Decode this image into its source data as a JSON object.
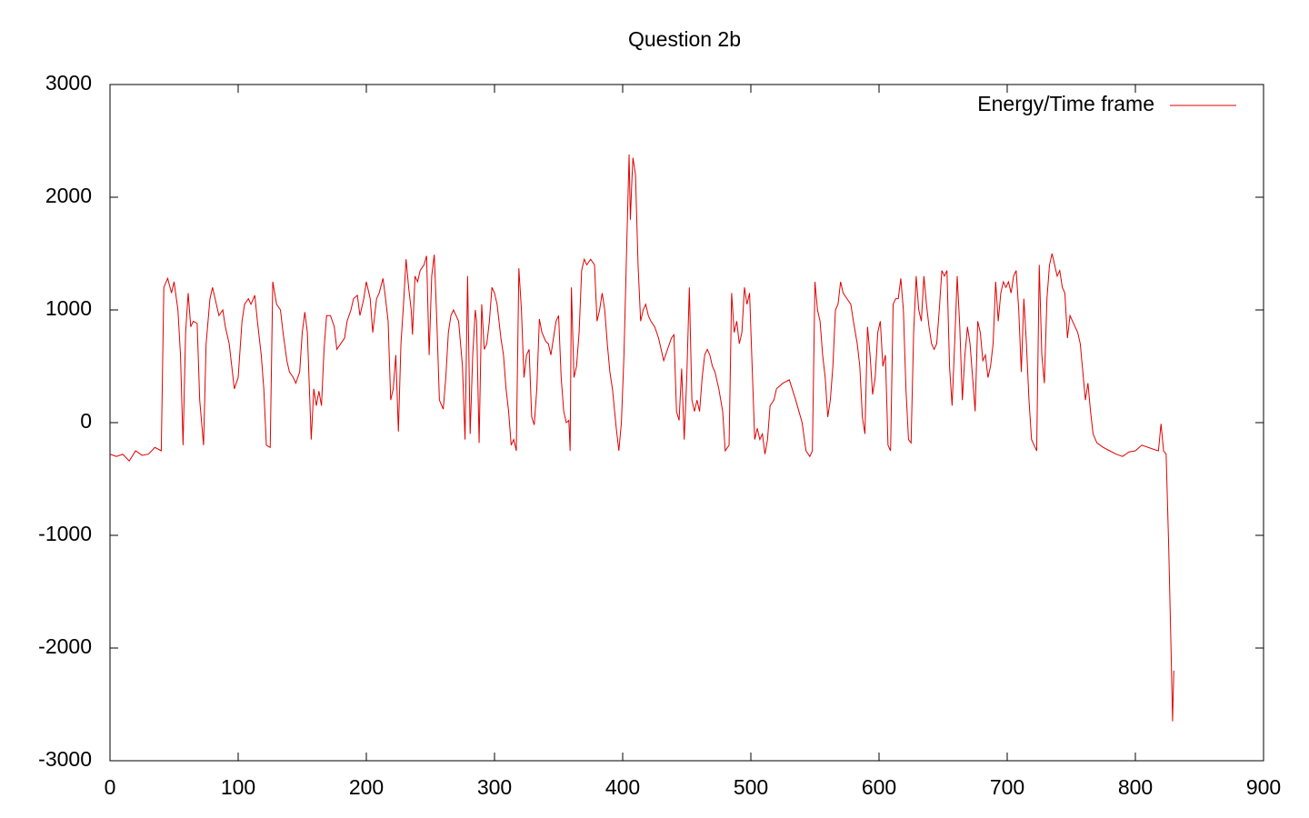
{
  "chart_data": {
    "type": "line",
    "title": "Question 2b",
    "x": [
      0,
      5,
      10,
      15,
      20,
      25,
      30,
      35,
      40,
      42,
      45,
      48,
      50,
      53,
      55,
      57,
      59,
      61,
      63,
      65,
      68,
      70,
      73,
      75,
      78,
      80,
      83,
      85,
      88,
      90,
      93,
      95,
      97,
      100,
      103,
      105,
      108,
      110,
      113,
      115,
      118,
      120,
      122,
      125,
      127,
      130,
      133,
      135,
      138,
      140,
      143,
      145,
      148,
      150,
      152,
      154,
      157,
      159,
      161,
      163,
      165,
      167,
      169,
      172,
      175,
      177,
      180,
      183,
      185,
      188,
      190,
      193,
      195,
      198,
      200,
      203,
      205,
      208,
      210,
      213,
      215,
      217,
      219,
      221,
      223,
      225,
      227,
      229,
      231,
      233,
      235,
      236,
      238,
      240,
      242,
      245,
      247,
      249,
      251,
      253,
      255,
      257,
      260,
      262,
      264,
      266,
      268,
      270,
      272,
      275,
      277,
      279,
      281,
      283,
      285,
      286,
      288,
      290,
      292,
      294,
      296,
      298,
      300,
      302,
      305,
      307,
      309,
      311,
      313,
      315,
      317,
      319,
      321,
      323,
      325,
      327,
      329,
      331,
      333,
      335,
      337,
      340,
      342,
      344,
      346,
      348,
      350,
      352,
      354,
      356,
      358,
      359,
      360,
      362,
      364,
      366,
      368,
      370,
      372,
      375,
      378,
      380,
      382,
      384,
      386,
      388,
      390,
      392,
      395,
      397,
      399,
      401,
      403,
      405,
      406,
      407,
      408,
      410,
      412,
      414,
      416,
      418,
      420,
      422,
      425,
      428,
      430,
      432,
      435,
      438,
      440,
      442,
      444,
      446,
      448,
      450,
      452,
      454,
      456,
      458,
      460,
      462,
      464,
      466,
      468,
      470,
      472,
      475,
      478,
      480,
      483,
      485,
      487,
      489,
      491,
      493,
      495,
      497,
      499,
      501,
      503,
      505,
      507,
      509,
      511,
      513,
      515,
      518,
      520,
      525,
      530,
      535,
      540,
      543,
      546,
      548,
      550,
      552,
      554,
      556,
      558,
      560,
      562,
      564,
      566,
      568,
      570,
      572,
      575,
      578,
      580,
      583,
      585,
      587,
      589,
      591,
      593,
      595,
      597,
      599,
      601,
      603,
      605,
      607,
      609,
      611,
      613,
      615,
      617,
      619,
      621,
      623,
      625,
      627,
      629,
      631,
      633,
      635,
      637,
      639,
      641,
      643,
      645,
      647,
      649,
      651,
      653,
      655,
      657,
      659,
      661,
      663,
      665,
      667,
      669,
      671,
      673,
      675,
      677,
      679,
      681,
      683,
      685,
      687,
      689,
      691,
      693,
      695,
      697,
      699,
      701,
      703,
      705,
      707,
      709,
      711,
      713,
      715,
      717,
      719,
      721,
      723,
      725,
      727,
      729,
      731,
      733,
      735,
      737,
      739,
      741,
      743,
      745,
      747,
      749,
      751,
      753,
      755,
      757,
      759,
      761,
      763,
      765,
      767,
      770,
      775,
      780,
      785,
      790,
      795,
      800,
      805,
      810,
      815,
      818,
      820,
      822,
      824,
      826,
      828,
      829,
      830
    ],
    "series": [
      {
        "name": "Energy/Time frame",
        "color": "#e00000",
        "values": [
          -280,
          -300,
          -280,
          -340,
          -250,
          -290,
          -280,
          -220,
          -250,
          1200,
          1280,
          1150,
          1250,
          1000,
          600,
          -200,
          800,
          1150,
          850,
          900,
          880,
          200,
          -200,
          700,
          1100,
          1200,
          1050,
          950,
          1000,
          850,
          700,
          500,
          300,
          400,
          900,
          1050,
          1100,
          1050,
          1130,
          900,
          600,
          300,
          -200,
          -220,
          1250,
          1050,
          1000,
          800,
          550,
          450,
          400,
          350,
          450,
          800,
          980,
          800,
          -150,
          300,
          150,
          280,
          150,
          650,
          950,
          950,
          850,
          650,
          700,
          750,
          900,
          1000,
          1100,
          1130,
          950,
          1100,
          1250,
          1100,
          800,
          1100,
          1150,
          1280,
          1100,
          900,
          200,
          300,
          600,
          -80,
          700,
          1050,
          1450,
          1200,
          1000,
          780,
          1300,
          1250,
          1350,
          1400,
          1480,
          600,
          1300,
          1490,
          900,
          200,
          120,
          400,
          800,
          950,
          1000,
          950,
          900,
          500,
          -150,
          1300,
          -100,
          600,
          1000,
          900,
          -180,
          1050,
          650,
          700,
          900,
          1200,
          1150,
          1050,
          750,
          600,
          300,
          100,
          -200,
          -150,
          -250,
          1370,
          1000,
          400,
          600,
          650,
          50,
          -20,
          300,
          920,
          800,
          720,
          700,
          600,
          750,
          900,
          950,
          400,
          100,
          0,
          20,
          -250,
          1200,
          400,
          500,
          800,
          1350,
          1450,
          1400,
          1450,
          1400,
          900,
          1000,
          1150,
          1000,
          700,
          450,
          300,
          -50,
          -250,
          0,
          600,
          1500,
          2380,
          1800,
          2100,
          2350,
          2200,
          1400,
          900,
          1000,
          1050,
          950,
          900,
          850,
          750,
          650,
          550,
          650,
          750,
          780,
          100,
          20,
          480,
          -150,
          400,
          1200,
          200,
          100,
          200,
          100,
          400,
          600,
          650,
          600,
          500,
          450,
          300,
          100,
          -250,
          -200,
          1150,
          800,
          900,
          700,
          800,
          1200,
          1050,
          1150,
          500,
          -150,
          -50,
          -150,
          -100,
          -280,
          -150,
          150,
          200,
          300,
          350,
          380,
          200,
          0,
          -250,
          -300,
          -250,
          1250,
          1000,
          900,
          600,
          400,
          50,
          200,
          500,
          1000,
          1050,
          1250,
          1150,
          1100,
          1050,
          900,
          700,
          500,
          50,
          -100,
          850,
          600,
          250,
          400,
          800,
          900,
          500,
          600,
          -200,
          -250,
          1050,
          1100,
          1100,
          1280,
          1000,
          300,
          -150,
          -180,
          800,
          1300,
          1000,
          900,
          1300,
          1050,
          850,
          700,
          650,
          700,
          1000,
          1350,
          1300,
          1350,
          500,
          150,
          700,
          1300,
          850,
          200,
          600,
          850,
          700,
          400,
          100,
          900,
          800,
          550,
          600,
          400,
          500,
          700,
          1250,
          900,
          1150,
          1250,
          1200,
          1250,
          1150,
          1300,
          1350,
          1000,
          450,
          1100,
          700,
          200,
          -150,
          -200,
          -250,
          1400,
          600,
          350,
          1100,
          1400,
          1500,
          1400,
          1300,
          1350,
          1200,
          1150,
          750,
          950,
          900,
          850,
          800,
          700,
          450,
          200,
          350,
          100,
          -100,
          -180,
          -220,
          -250,
          -280,
          -300,
          -260,
          -250,
          -200,
          -220,
          -240,
          -250,
          -10,
          -250,
          -280,
          -1100,
          -2100,
          -2650,
          -2200
        ]
      }
    ],
    "xlim": [
      0,
      900
    ],
    "xticks": [
      0,
      100,
      200,
      300,
      400,
      500,
      600,
      700,
      800,
      900
    ],
    "ylim": [
      -3000,
      3000
    ],
    "yticks": [
      -3000,
      -2000,
      -1000,
      0,
      1000,
      2000,
      3000
    ],
    "legend": "top-right"
  }
}
